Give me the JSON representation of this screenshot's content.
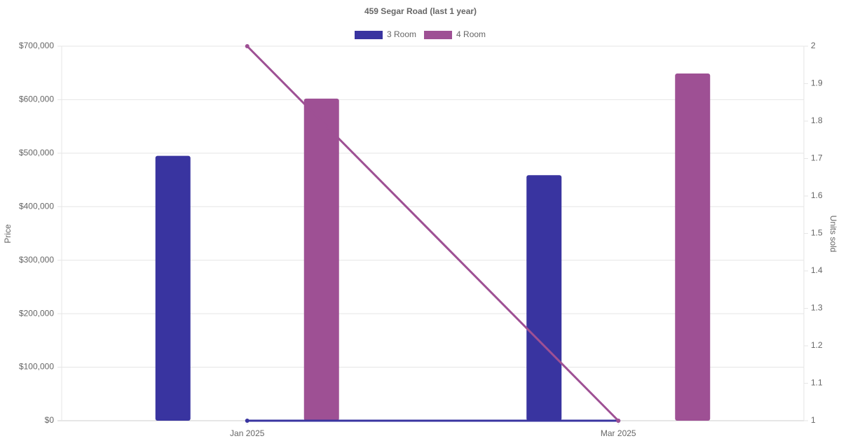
{
  "chart_data": {
    "type": "bar",
    "title": "459 Segar Road (last 1 year)",
    "categories": [
      "Jan 2025",
      "Mar 2025"
    ],
    "series": [
      {
        "name": "3 Room",
        "color": "#3934a0",
        "values": [
          495000,
          459000
        ],
        "units_sold": [
          1,
          1
        ]
      },
      {
        "name": "4 Room",
        "color": "#9e5094",
        "values": [
          602000,
          649000
        ],
        "units_sold": [
          2,
          1
        ]
      }
    ],
    "y_label": "Price",
    "y2_label": "Units sold",
    "ylim": [
      0,
      700000
    ],
    "yticks": [
      {
        "value": 0,
        "label": "$0"
      },
      {
        "value": 100000,
        "label": "$100,000"
      },
      {
        "value": 200000,
        "label": "$200,000"
      },
      {
        "value": 300000,
        "label": "$300,000"
      },
      {
        "value": 400000,
        "label": "$400,000"
      },
      {
        "value": 500000,
        "label": "$500,000"
      },
      {
        "value": 600000,
        "label": "$600,000"
      },
      {
        "value": 700000,
        "label": "$700,000"
      }
    ],
    "y2lim": [
      1,
      2
    ],
    "y2ticks": [
      1,
      1.1,
      1.2,
      1.3,
      1.4,
      1.5,
      1.6,
      1.7,
      1.8,
      1.9,
      2
    ],
    "grid": true
  }
}
